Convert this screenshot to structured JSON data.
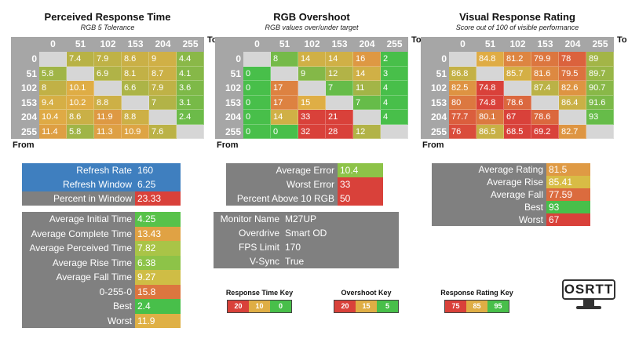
{
  "heatmaps": [
    {
      "title": "Perceived Response Time",
      "subtitle": "RGB 5 Tolerance",
      "to_label": "To",
      "from_label": "From",
      "columns": [
        0,
        51,
        102,
        153,
        204,
        255
      ],
      "rows": [
        0,
        51,
        102,
        153,
        204,
        255
      ],
      "cells": [
        [
          null,
          7.4,
          7.9,
          8.6,
          9,
          4.4
        ],
        [
          5.8,
          null,
          6.9,
          8.1,
          8.7,
          4.1
        ],
        [
          8,
          10.1,
          null,
          6.6,
          7.9,
          3.6
        ],
        [
          9.4,
          10.2,
          8.8,
          null,
          7,
          3.1
        ],
        [
          10.4,
          8.6,
          11.9,
          8.8,
          null,
          2.4
        ],
        [
          11.4,
          5.8,
          11.3,
          10.9,
          7.6,
          null
        ]
      ]
    },
    {
      "title": "RGB Overshoot",
      "subtitle": "RGB values over/under target",
      "to_label": "To",
      "from_label": "From",
      "columns": [
        0,
        51,
        102,
        153,
        204,
        255
      ],
      "rows": [
        0,
        51,
        102,
        153,
        204,
        255
      ],
      "cells": [
        [
          null,
          8,
          14,
          14,
          16,
          2
        ],
        [
          0,
          null,
          9,
          12,
          14,
          3
        ],
        [
          0,
          17,
          null,
          7,
          11,
          4
        ],
        [
          0,
          17,
          15,
          null,
          7,
          4
        ],
        [
          0,
          14,
          33,
          21,
          null,
          4
        ],
        [
          0,
          0,
          32,
          28,
          12,
          null
        ]
      ]
    },
    {
      "title": "Visual Response Rating",
      "subtitle": "Score out of 100 of visible performance",
      "to_label": "To",
      "from_label": "From",
      "columns": [
        0,
        51,
        102,
        153,
        204,
        255
      ],
      "rows": [
        0,
        51,
        102,
        153,
        204,
        255
      ],
      "cells": [
        [
          null,
          84.8,
          81.2,
          79.9,
          78,
          89
        ],
        [
          86.8,
          null,
          85.7,
          81.6,
          79.5,
          89.7
        ],
        [
          82.5,
          74.8,
          null,
          87.4,
          82.6,
          90.7
        ],
        [
          80,
          74.8,
          78.6,
          null,
          86.4,
          91.6
        ],
        [
          77.7,
          80.1,
          67,
          78.6,
          null,
          93
        ],
        [
          76,
          86.5,
          68.5,
          69.2,
          82.7,
          null
        ]
      ]
    }
  ],
  "keys": [
    {
      "title": "Response Time Key",
      "values": [
        20,
        10,
        0
      ],
      "colors": [
        "#d9413a",
        "#dfae45",
        "#48bf4a"
      ]
    },
    {
      "title": "Overshoot Key",
      "values": [
        20,
        15,
        5
      ],
      "colors": [
        "#d9413a",
        "#dfae45",
        "#48bf4a"
      ]
    },
    {
      "title": "Response Rating Key",
      "values": [
        75,
        85,
        95
      ],
      "colors": [
        "#d9413a",
        "#dfae45",
        "#48bf4a"
      ]
    }
  ],
  "panels": [
    {
      "rows": [
        {
          "label": "Refresh Rate",
          "value": 160,
          "label_color": "#3f7fbf",
          "value_color": "#3f7fbf"
        },
        {
          "label": "Refresh Window",
          "value": 6.25,
          "label_color": "#3f7fbf",
          "value_color": "#3f7fbf"
        },
        {
          "label": "Percent in Window",
          "value": 23.33,
          "label_color": "#808080",
          "value_color": "#d9413a"
        }
      ]
    },
    {
      "rows": [
        {
          "label": "Average Initial Time",
          "value": 4.25,
          "label_color": "#808080",
          "value_color": "#58c24a"
        },
        {
          "label": "Average Complete Time",
          "value": 13.43,
          "label_color": "#808080",
          "value_color": "#e0a244"
        },
        {
          "label": "Average Perceived Time",
          "value": 7.82,
          "label_color": "#808080",
          "value_color": "#a9c447"
        },
        {
          "label": "Average Rise Time",
          "value": 6.38,
          "label_color": "#808080",
          "value_color": "#8dc348"
        },
        {
          "label": "Average Fall Time",
          "value": 9.27,
          "label_color": "#808080",
          "value_color": "#cfbd45"
        },
        {
          "label": "0-255-0",
          "value": 15.8,
          "label_color": "#808080",
          "value_color": "#dc763f"
        },
        {
          "label": "Best",
          "value": 2.4,
          "label_color": "#808080",
          "value_color": "#48bf4a"
        },
        {
          "label": "Worst",
          "value": 11.9,
          "label_color": "#808080",
          "value_color": "#dfb045"
        }
      ]
    },
    {
      "rows": [
        {
          "label": "Average Error",
          "value": 10.4,
          "label_color": "#808080",
          "value_color": "#8dc348"
        },
        {
          "label": "Worst Error",
          "value": 33,
          "label_color": "#808080",
          "value_color": "#d9413a"
        },
        {
          "label": "Percent Above 10 RGB",
          "value": 50,
          "label_color": "#808080",
          "value_color": "#d9413a"
        }
      ]
    },
    {
      "rows": [
        {
          "label": "Monitor Name",
          "value": "M27UP",
          "label_color": "#808080",
          "value_color": "#808080"
        },
        {
          "label": "Overdrive",
          "value": "Smart OD",
          "label_color": "#808080",
          "value_color": "#808080"
        },
        {
          "label": "FPS Limit",
          "value": 170,
          "label_color": "#808080",
          "value_color": "#808080"
        },
        {
          "label": "V-Sync",
          "value": "True",
          "label_color": "#808080",
          "value_color": "#808080"
        }
      ]
    },
    {
      "rows": [
        {
          "label": "Average Rating",
          "value": 81.5,
          "label_color": "#808080",
          "value_color": "#df9a44"
        },
        {
          "label": "Average Rise",
          "value": 85.41,
          "label_color": "#808080",
          "value_color": "#d8bc45"
        },
        {
          "label": "Average Fall",
          "value": 77.59,
          "label_color": "#808080",
          "value_color": "#db6b3e"
        },
        {
          "label": "Best",
          "value": 93,
          "label_color": "#808080",
          "value_color": "#48bf4a"
        },
        {
          "label": "Worst",
          "value": 67,
          "label_color": "#808080",
          "value_color": "#d9413a"
        }
      ]
    }
  ],
  "logo": "OSRTT"
}
